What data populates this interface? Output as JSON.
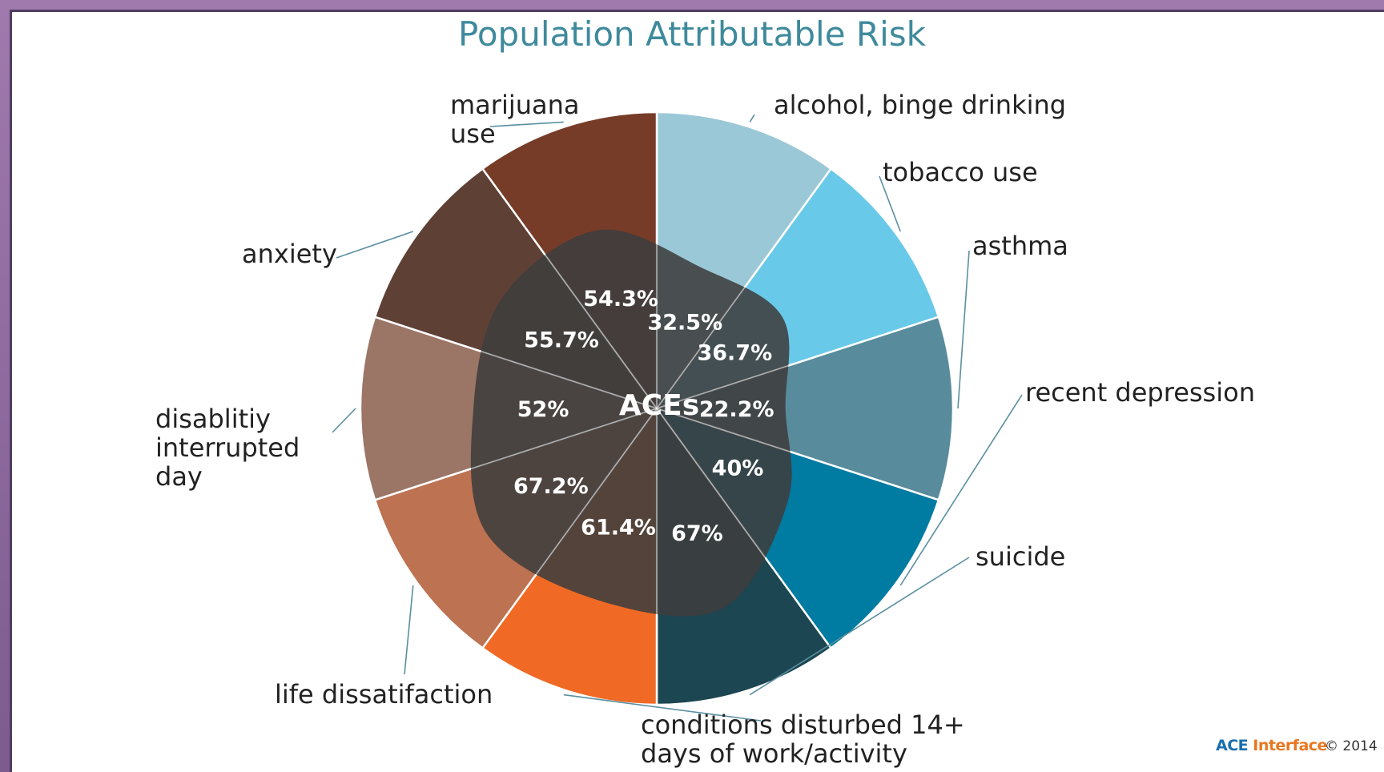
{
  "chart_data": {
    "type": "pie",
    "title": "Population Attributable Risk",
    "center_label": "ACEs",
    "slices": [
      {
        "label": [
          "alcohol, binge drinking"
        ],
        "value": 32.5,
        "value_label": "32.5%",
        "color": "#9bc8d6"
      },
      {
        "label": [
          "tobacco use"
        ],
        "value": 36.7,
        "value_label": "36.7%",
        "color": "#69c9e8"
      },
      {
        "label": [
          "asthma"
        ],
        "value": 22.2,
        "value_label": "22.2%",
        "color": "#588b9b"
      },
      {
        "label": [
          "recent depression"
        ],
        "value": 40,
        "value_label": "40%",
        "color": "#007ba1"
      },
      {
        "label": [
          "suicide"
        ],
        "value": 67,
        "value_label": "67%",
        "color": "#1c4651"
      },
      {
        "label": [
          "conditions disturbed 14+",
          "days of work/activity"
        ],
        "value": 61.4,
        "value_label": "61.4%",
        "color": "#f06a25"
      },
      {
        "label": [
          "life dissatifaction"
        ],
        "value": 67.2,
        "value_label": "67.2%",
        "color": "#bd7252"
      },
      {
        "label": [
          "disablitiy",
          "interrupted",
          "day"
        ],
        "value": 52,
        "value_label": "52%",
        "color": "#9b7565"
      },
      {
        "label": [
          "anxiety"
        ],
        "value": 55.7,
        "value_label": "55.7%",
        "color": "#5e4035"
      },
      {
        "label": [
          "marijuana",
          "use"
        ],
        "value": 54.3,
        "value_label": "54.3%",
        "color": "#773c28"
      }
    ]
  },
  "footer": {
    "logo_text_primary": "ACE ",
    "logo_text_accent": "Interface",
    "copyright": "© 2014"
  }
}
